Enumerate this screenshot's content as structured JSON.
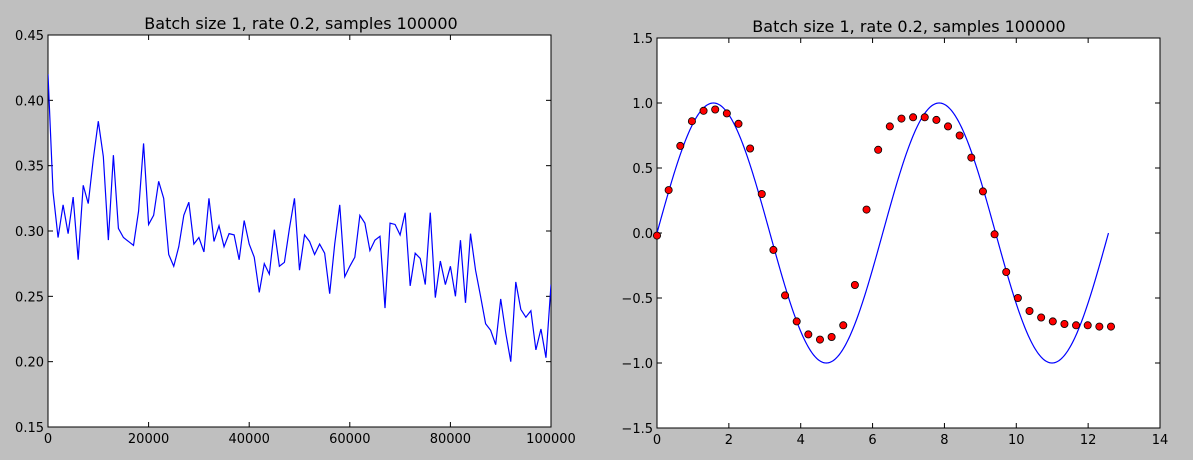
{
  "chart_data": [
    {
      "type": "line",
      "title": "Batch size 1, rate 0.2, samples 100000",
      "xlabel": "",
      "ylabel": "",
      "xlim": [
        0,
        100000
      ],
      "ylim": [
        0.15,
        0.45
      ],
      "xticks": [
        0,
        20000,
        40000,
        60000,
        80000,
        100000
      ],
      "xtick_labels": [
        "0",
        "20000",
        "40000",
        "60000",
        "80000",
        "100000"
      ],
      "yticks": [
        0.15,
        0.2,
        0.25,
        0.3,
        0.35,
        0.4,
        0.45
      ],
      "ytick_labels": [
        "0.15",
        "0.20",
        "0.25",
        "0.30",
        "0.35",
        "0.40",
        "0.45"
      ],
      "grid": false,
      "series": [
        {
          "color": "#0000ff",
          "x": [
            0,
            1000,
            2000,
            3000,
            4000,
            5000,
            6000,
            7000,
            8000,
            9000,
            10000,
            11000,
            12000,
            13000,
            14000,
            15000,
            16000,
            17000,
            18000,
            19000,
            20000,
            21000,
            22000,
            23000,
            24000,
            25000,
            26000,
            27000,
            28000,
            29000,
            30000,
            31000,
            32000,
            33000,
            34000,
            35000,
            36000,
            37000,
            38000,
            39000,
            40000,
            41000,
            42000,
            43000,
            44000,
            45000,
            46000,
            47000,
            48000,
            49000,
            50000,
            51000,
            52000,
            53000,
            54000,
            55000,
            56000,
            57000,
            58000,
            59000,
            60000,
            61000,
            62000,
            63000,
            64000,
            65000,
            66000,
            67000,
            68000,
            69000,
            70000,
            71000,
            72000,
            73000,
            74000,
            75000,
            76000,
            77000,
            78000,
            79000,
            80000,
            81000,
            82000,
            83000,
            84000,
            85000,
            86000,
            87000,
            88000,
            89000,
            90000,
            91000,
            92000,
            93000,
            94000,
            95000,
            96000,
            97000,
            98000,
            99000,
            100000
          ],
          "y": [
            0.42,
            0.33,
            0.295,
            0.32,
            0.298,
            0.326,
            0.278,
            0.335,
            0.321,
            0.355,
            0.384,
            0.357,
            0.293,
            0.358,
            0.302,
            0.295,
            0.292,
            0.289,
            0.315,
            0.367,
            0.305,
            0.312,
            0.338,
            0.325,
            0.282,
            0.273,
            0.288,
            0.312,
            0.322,
            0.29,
            0.295,
            0.284,
            0.325,
            0.292,
            0.304,
            0.288,
            0.298,
            0.297,
            0.278,
            0.308,
            0.29,
            0.28,
            0.253,
            0.275,
            0.267,
            0.301,
            0.273,
            0.276,
            0.302,
            0.325,
            0.27,
            0.297,
            0.292,
            0.282,
            0.29,
            0.283,
            0.252,
            0.29,
            0.32,
            0.265,
            0.273,
            0.28,
            0.312,
            0.306,
            0.285,
            0.293,
            0.296,
            0.241,
            0.306,
            0.305,
            0.297,
            0.314,
            0.258,
            0.283,
            0.279,
            0.259,
            0.314,
            0.249,
            0.277,
            0.259,
            0.273,
            0.25,
            0.293,
            0.245,
            0.298,
            0.27,
            0.25,
            0.229,
            0.224,
            0.213,
            0.248,
            0.222,
            0.2,
            0.261,
            0.24,
            0.234,
            0.239,
            0.209,
            0.225,
            0.203,
            0.259
          ]
        }
      ]
    },
    {
      "type": "line",
      "title": "Batch size 1, rate 0.2, samples 100000",
      "xlabel": "",
      "ylabel": "",
      "xlim": [
        0,
        14
      ],
      "ylim": [
        -1.5,
        1.5
      ],
      "xticks": [
        0,
        2,
        4,
        6,
        8,
        10,
        12,
        14
      ],
      "xtick_labels": [
        "0",
        "2",
        "4",
        "6",
        "8",
        "10",
        "12",
        "14"
      ],
      "yticks": [
        -1.5,
        -1.0,
        -0.5,
        0.0,
        0.5,
        1.0,
        1.5
      ],
      "ytick_labels": [
        "−1.5",
        "−1.0",
        "−0.5",
        "0.0",
        "0.5",
        "1.0",
        "1.5"
      ],
      "grid": false,
      "series": [
        {
          "kind": "line",
          "color": "#0000ff",
          "function": "sin(x)",
          "x_range": [
            0,
            12.566
          ]
        },
        {
          "kind": "scatter",
          "color": "#ff0000",
          "x": [
            0.0,
            0.324,
            0.648,
            0.972,
            1.296,
            1.62,
            1.944,
            2.268,
            2.592,
            2.916,
            3.24,
            3.564,
            3.888,
            4.212,
            4.536,
            4.86,
            5.184,
            5.508,
            5.832,
            6.156,
            6.48,
            6.804,
            7.128,
            7.452,
            7.776,
            8.1,
            8.424,
            8.748,
            9.072,
            9.396,
            9.72,
            10.044,
            10.368,
            10.692,
            11.016,
            11.34,
            11.664,
            11.988,
            12.312,
            12.636
          ],
          "y": [
            -0.02,
            0.33,
            0.67,
            0.86,
            0.94,
            0.95,
            0.92,
            0.84,
            0.65,
            0.3,
            -0.13,
            -0.48,
            -0.68,
            -0.78,
            -0.82,
            -0.8,
            -0.71,
            -0.4,
            0.18,
            0.64,
            0.82,
            0.88,
            0.89,
            0.89,
            0.87,
            0.82,
            0.75,
            0.58,
            0.32,
            -0.01,
            -0.3,
            -0.5,
            -0.6,
            -0.65,
            -0.68,
            -0.7,
            -0.71,
            -0.71,
            -0.72,
            -0.72
          ]
        }
      ]
    }
  ]
}
